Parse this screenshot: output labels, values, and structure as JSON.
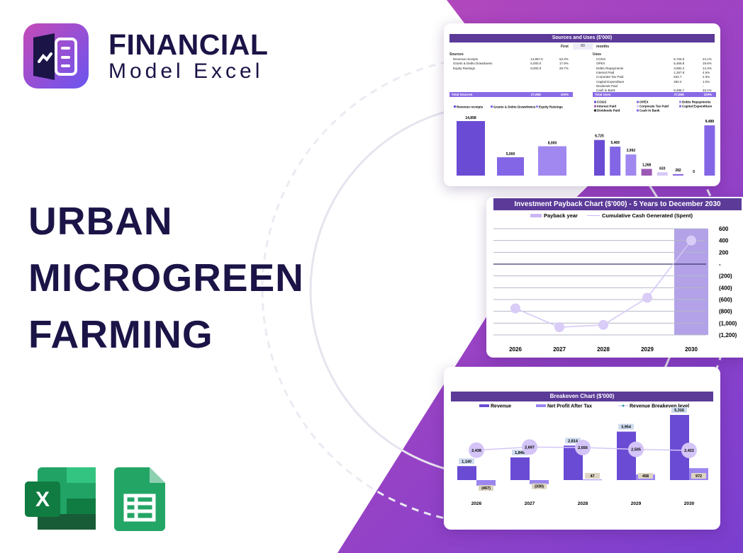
{
  "brand": {
    "line1": "FINANCIAL",
    "line2": "Model Excel"
  },
  "title_lines": [
    "URBAN",
    "MICROGREEN",
    "FARMING"
  ],
  "colors": {
    "accent": "#5b3a98",
    "dark": "#1b1447",
    "bar1": "#6a4bd4",
    "bar2": "#8366e6",
    "bar3": "#a088f0",
    "pale": "#c9b6f3"
  },
  "icons": [
    "excel-icon",
    "google-sheets-icon"
  ],
  "sources_uses": {
    "title": "Sources and Uses ($'000)",
    "period": {
      "label": "First",
      "value": "60",
      "unit": "months"
    },
    "sources_label": "Sources",
    "sources": [
      [
        "Revenue receipts",
        "14,857.6",
        "53.3%"
      ],
      [
        "Grants & Debts Drawdowns",
        "5,000.0",
        "17.9%"
      ],
      [
        "Equity Raisings",
        "8,000.0",
        "28.7%"
      ]
    ],
    "sources_total": [
      "Total Sources",
      "27,858",
      "100%"
    ],
    "uses_label": "Uses",
    "uses": [
      [
        "COGS",
        "6,725.5",
        "24.1%"
      ],
      [
        "OPEX",
        "5,468.8",
        "19.6%"
      ],
      [
        "Debts Repayments",
        "3,992.2",
        "14.3%"
      ],
      [
        "Interest Paid",
        "1,267.8",
        "4.6%"
      ],
      [
        "Corporate Tax Paid",
        "632.7",
        "2.3%"
      ],
      [
        "Capital Expenditure",
        "282.0",
        "1.0%"
      ],
      [
        "Dividends Paid",
        "-",
        "-"
      ],
      [
        "Cash in Bank",
        "9,488.7",
        "34.1%"
      ]
    ],
    "uses_total": [
      "Total Uses",
      "27,858",
      "100%"
    ],
    "sources_chart": {
      "type": "bar",
      "categories": [
        "Revenue receipts",
        "Grants & Debts Drawdowns",
        "Equity Raisings"
      ],
      "values": [
        14858,
        5000,
        8000
      ],
      "labels": [
        "14,858",
        "5,000",
        "8,000"
      ]
    },
    "uses_chart": {
      "type": "bar",
      "categories": [
        "COGS",
        "OPEX",
        "Debts Repayments",
        "Interest Paid",
        "Corporate Tax Paid",
        "Capital Expenditure",
        "Dividends Paid",
        "Cash in Bank"
      ],
      "values": [
        6725,
        5469,
        3992,
        1268,
        633,
        282,
        0,
        9489
      ],
      "labels": [
        "6,725",
        "5,469",
        "3,992",
        "1,268",
        "633",
        "282",
        "0",
        "9,489"
      ]
    }
  },
  "chart_data": [
    {
      "type": "bar",
      "title": "Investment Payback Chart ($'000) - 5 Years to December 2030",
      "categories": [
        "2026",
        "2027",
        "2028",
        "2029",
        "2030"
      ],
      "series": [
        {
          "name": "Payback year",
          "type": "bar",
          "highlight": "2030"
        },
        {
          "name": "Cumulative Cash Generated (Spent)",
          "type": "line",
          "values": [
            -750,
            -1070,
            -1030,
            -570,
            400
          ]
        }
      ],
      "ylim": [
        -1200,
        600
      ],
      "yticks": [
        "600",
        "400",
        "200",
        "-",
        "(200)",
        "(400)",
        "(600)",
        "(800)",
        "(1,000)",
        "(1,200)"
      ],
      "grid": true,
      "legend": "top"
    },
    {
      "type": "bar",
      "title": "Breakeven Chart ($'000)",
      "categories": [
        "2026",
        "2027",
        "2028",
        "2029",
        "2030"
      ],
      "series": [
        {
          "name": "Revenue",
          "values": [
            1140,
            1848,
            2814,
            3954,
            5316
          ],
          "labels": [
            "1,140",
            "1,848",
            "2,814",
            "3,954",
            "5,316"
          ]
        },
        {
          "name": "Net Profit After Tax",
          "values": [
            -467,
            -330,
            47,
            458,
            972
          ],
          "labels": [
            "(467)",
            "(330)",
            "47",
            "458",
            "972"
          ]
        },
        {
          "name": "Revenue Breakeven level",
          "type": "line",
          "values": [
            2438,
            2697,
            2656,
            2505,
            2422
          ],
          "labels": [
            "2,438",
            "2,697",
            "2,656",
            "2,505",
            "2,422"
          ]
        }
      ],
      "legend": "top"
    }
  ]
}
